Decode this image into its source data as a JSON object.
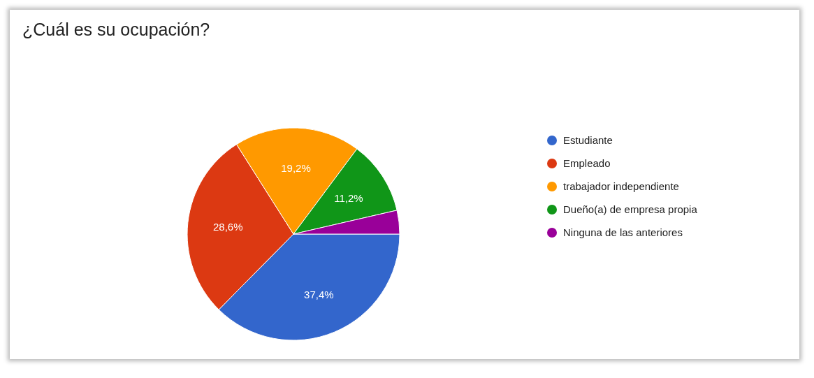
{
  "chart_data": {
    "type": "pie",
    "title": "¿Cuál es su ocupación?",
    "categories": [
      "Estudiante",
      "Empleado",
      "trabajador independiente",
      "Dueño(a) de empresa propia",
      "Ninguna de las anteriores"
    ],
    "values": [
      37.4,
      28.6,
      19.2,
      11.2,
      3.6
    ],
    "value_labels": [
      "37,4%",
      "28,6%",
      "19,2%",
      "11,2%",
      null
    ],
    "colors": [
      "#3366cc",
      "#dc3912",
      "#ff9900",
      "#109618",
      "#990099"
    ],
    "legend": "right"
  }
}
